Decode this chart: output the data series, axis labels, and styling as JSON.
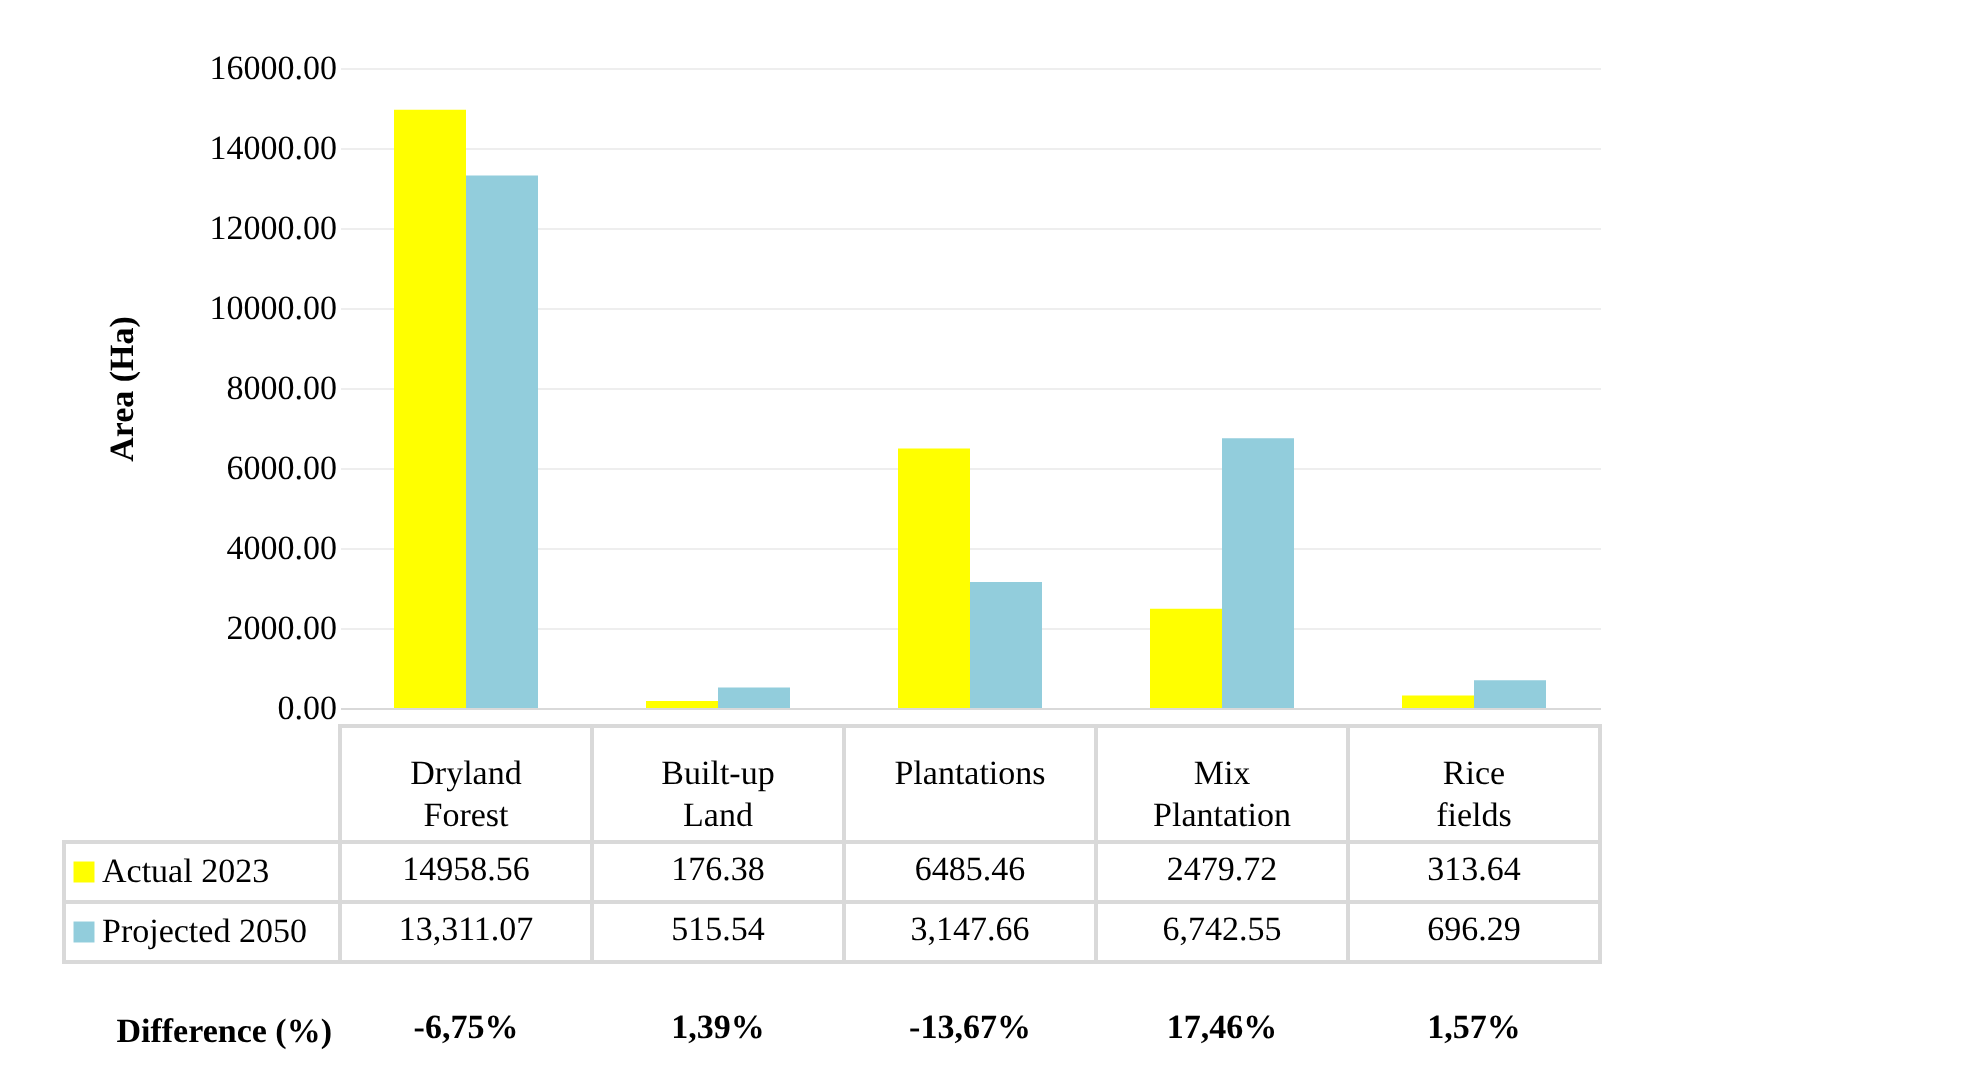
{
  "chart_data": {
    "type": "bar",
    "ylabel": "Area (Ha)",
    "categories": [
      "Dryland Forest",
      "Built-up Land",
      "Plantations",
      "Mix Plantation",
      "Rice fields"
    ],
    "series": [
      {
        "name": "Actual 2023",
        "color": "#ffff00",
        "values": [
          14958.56,
          176.38,
          6485.46,
          2479.72,
          313.64
        ],
        "value_labels": [
          "14958.56",
          "176.38",
          "6485.46",
          "2479.72",
          "313.64"
        ]
      },
      {
        "name": "Projected 2050",
        "color": "#92cddc",
        "values": [
          13311.07,
          515.54,
          3147.66,
          6742.55,
          696.29
        ],
        "value_labels": [
          "13,311.07",
          "515.54",
          "3,147.66",
          "6,742.55",
          "696.29"
        ]
      }
    ],
    "ylim": [
      0,
      16000
    ],
    "yticks": [
      {
        "value": 0,
        "label": "0.00"
      },
      {
        "value": 2000,
        "label": "2000.00"
      },
      {
        "value": 4000,
        "label": "4000.00"
      },
      {
        "value": 6000,
        "label": "6000.00"
      },
      {
        "value": 8000,
        "label": "8000.00"
      },
      {
        "value": 10000,
        "label": "10000.00"
      },
      {
        "value": 12000,
        "label": "12000.00"
      },
      {
        "value": 14000,
        "label": "14000.00"
      },
      {
        "value": 16000,
        "label": "16000.00"
      }
    ],
    "grid": "y",
    "legend": "bottom",
    "annotations": [
      "Difference (%)",
      "-6,75%",
      "1,39%",
      "-13,67%",
      "17,46%",
      "1,57%"
    ]
  }
}
